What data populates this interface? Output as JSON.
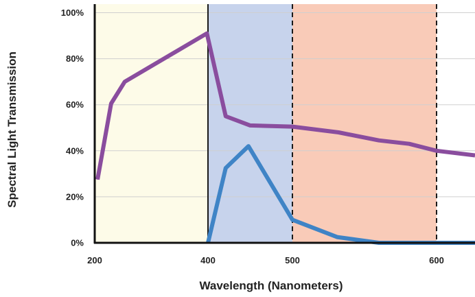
{
  "chart_data": {
    "type": "line",
    "title": "",
    "xlabel": "Wavelength (Nanometers)",
    "ylabel": "Spectral Light Transmission",
    "xlim": [
      200,
      600
    ],
    "ylim": [
      0,
      100
    ],
    "x_ticks": [
      {
        "value": 200,
        "label": "200"
      },
      {
        "value": 400,
        "label": "400"
      },
      {
        "value": 500,
        "label": "500"
      },
      {
        "value": 600,
        "label": "600"
      }
    ],
    "y_ticks": [
      {
        "value": 0,
        "label": "0%"
      },
      {
        "value": 20,
        "label": "20%"
      },
      {
        "value": 40,
        "label": "40%"
      },
      {
        "value": 60,
        "label": "60%"
      },
      {
        "value": 80,
        "label": "80%"
      },
      {
        "value": 100,
        "label": "100%"
      }
    ],
    "grid": true,
    "bands": [
      {
        "from": 200,
        "to": 400,
        "color": "#fdfbe8"
      },
      {
        "from": 400,
        "to": 500,
        "color": "#c7d3ec"
      },
      {
        "from": 500,
        "to": 600,
        "color": "#f9cbb8"
      }
    ],
    "vlines": [
      {
        "x": 400,
        "style": "solid"
      },
      {
        "x": 500,
        "style": "dashed"
      },
      {
        "x": 600,
        "style": "dashed"
      }
    ],
    "series": [
      {
        "color": "#8a4d9e",
        "points": [
          {
            "x": 205,
            "y": 27.5
          },
          {
            "x": 229,
            "y": 60.5
          },
          {
            "x": 253,
            "y": 70
          },
          {
            "x": 398,
            "y": 91
          },
          {
            "x": 421,
            "y": 55
          },
          {
            "x": 450,
            "y": 51
          },
          {
            "x": 500,
            "y": 50.5
          },
          {
            "x": 532,
            "y": 48
          },
          {
            "x": 560,
            "y": 44.5
          },
          {
            "x": 581,
            "y": 43
          },
          {
            "x": 600,
            "y": 40
          },
          {
            "x": 625,
            "y": 38
          }
        ]
      },
      {
        "color": "#3f84c6",
        "points": [
          {
            "x": 400,
            "y": 0
          },
          {
            "x": 421,
            "y": 32.5
          },
          {
            "x": 448,
            "y": 42
          },
          {
            "x": 500,
            "y": 10
          },
          {
            "x": 531,
            "y": 2.5
          },
          {
            "x": 560,
            "y": 0
          },
          {
            "x": 625,
            "y": 0
          }
        ]
      }
    ]
  }
}
